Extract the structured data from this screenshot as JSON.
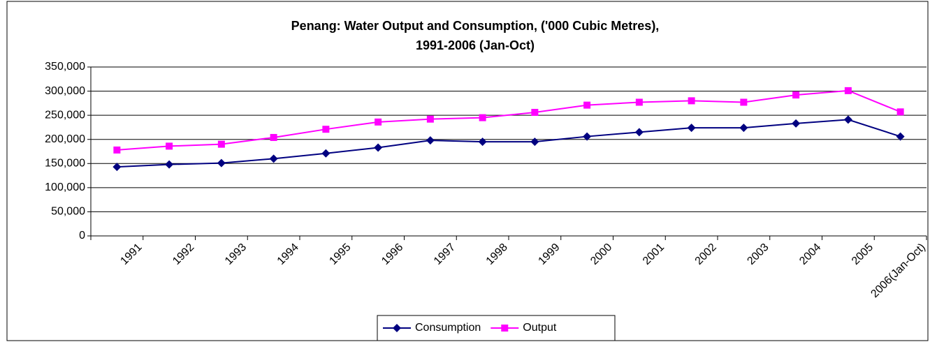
{
  "chart_data": {
    "type": "line",
    "title": "Penang: Water Output and Consumption, ('000 Cubic Metres),",
    "subtitle": "1991-2006 (Jan-Oct)",
    "categories": [
      "1991",
      "1992",
      "1993",
      "1994",
      "1995",
      "1996",
      "1997",
      "1998",
      "1999",
      "2000",
      "2001",
      "2002",
      "2003",
      "2004",
      "2005",
      "2006(Jan-Oct)"
    ],
    "series": [
      {
        "name": "Consumption",
        "color": "#000080",
        "marker": "diamond",
        "values": [
          143000,
          148000,
          151000,
          160000,
          171000,
          183000,
          198000,
          195000,
          195000,
          206000,
          215000,
          224000,
          224000,
          233000,
          241000,
          206000
        ]
      },
      {
        "name": "Output",
        "color": "#ff00ff",
        "marker": "square",
        "values": [
          178000,
          186000,
          190000,
          204000,
          221000,
          236000,
          242000,
          245000,
          256000,
          271000,
          277000,
          280000,
          277000,
          292000,
          301000,
          257000
        ]
      }
    ],
    "ylim": [
      0,
      350000
    ],
    "yticks": [
      0,
      {
        "value": 50000,
        "label": "50,000"
      },
      {
        "value": 100000,
        "label": "100,000"
      },
      {
        "value": 150000,
        "label": "150,000"
      },
      {
        "value": 200000,
        "label": "200,000"
      },
      {
        "value": 250000,
        "label": "250,000"
      },
      {
        "value": 300000,
        "label": "300,000"
      },
      {
        "value": 350000,
        "label": "350,000"
      }
    ],
    "grid": true,
    "legend": "bottom"
  }
}
